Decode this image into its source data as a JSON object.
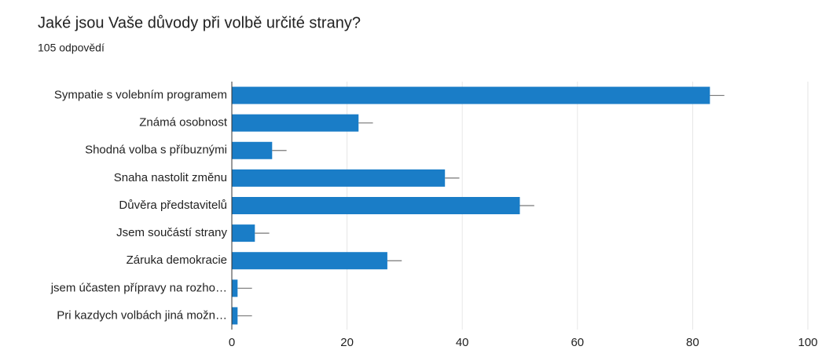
{
  "chart_data": {
    "type": "bar",
    "orientation": "horizontal",
    "title": "Jaké jsou Vaše důvody při volbě určité strany?",
    "subtitle": "105 odpovědí",
    "categories": [
      "Sympatie s volebním programem",
      "Známá osobnost",
      "Shodná volba s příbuznými",
      "Snaha nastolit změnu",
      "Důvěra představitelů",
      "Jsem součástí strany",
      "Záruka demokracie",
      "jsem účasten přípravy na rozho…",
      "Pri kazdych volbách jiná možn…"
    ],
    "values": [
      83,
      22,
      7,
      37,
      50,
      4,
      27,
      1,
      1
    ],
    "errors": [
      2.5,
      2.5,
      2.5,
      2.5,
      2.5,
      2.5,
      2.5,
      2.5,
      2.5
    ],
    "color": "#1a7dc7",
    "xlim": [
      0,
      100
    ],
    "xticks": [
      0,
      20,
      40,
      60,
      80,
      100
    ],
    "grid": true
  }
}
